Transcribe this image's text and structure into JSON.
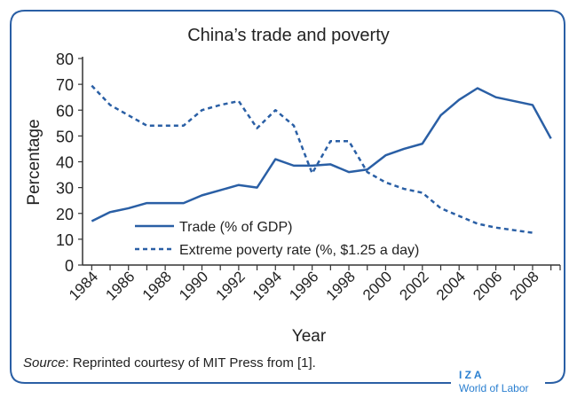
{
  "chart_data": {
    "type": "line",
    "title": "China’s trade and poverty",
    "xlabel": "Year",
    "ylabel": "Percentage",
    "xlim": [
      1983.5,
      2009.5
    ],
    "ylim": [
      0,
      80
    ],
    "yticks": [
      0,
      10,
      20,
      30,
      40,
      50,
      60,
      70,
      80
    ],
    "xtick_labels": [
      "1984",
      "1986",
      "1988",
      "1990",
      "1992",
      "1994",
      "1996",
      "1998",
      "2000",
      "2002",
      "2004",
      "2006",
      "2008"
    ],
    "grid": false,
    "legend_position": "bottom-center",
    "series": [
      {
        "name": "Trade (% of GDP)",
        "style": "solid",
        "x": [
          1984,
          1985,
          1986,
          1987,
          1988,
          1989,
          1990,
          1991,
          1992,
          1993,
          1994,
          1995,
          1996,
          1997,
          1998,
          1999,
          2000,
          2001,
          2002,
          2003,
          2004,
          2005,
          2006,
          2007,
          2008,
          2009
        ],
        "values": [
          17,
          20.5,
          22,
          24,
          24,
          24,
          27,
          29,
          31,
          30,
          41,
          38.5,
          38.5,
          39,
          36,
          37,
          42.5,
          45,
          47,
          58,
          64,
          68.5,
          65,
          63.5,
          62,
          49
        ]
      },
      {
        "name": "Extreme poverty rate (%, $1.25 a day)",
        "style": "dashed",
        "x": [
          1984,
          1985,
          1986,
          1987,
          1988,
          1989,
          1990,
          1991,
          1992,
          1993,
          1994,
          1995,
          1996,
          1997,
          1998,
          1999,
          2000,
          2001,
          2002,
          2003,
          2004,
          2005,
          2006,
          2007,
          2008
        ],
        "values": [
          69.5,
          62,
          58,
          54,
          54,
          54,
          60,
          62,
          63.5,
          53,
          60,
          54,
          35.5,
          48,
          48,
          36,
          32,
          29.5,
          28,
          22,
          19,
          16,
          14.5,
          13.5,
          12.5
        ]
      }
    ],
    "source_label": "Source",
    "source_text": ": Reprinted courtesy of MIT Press from [1].",
    "logo_top": "I Z A",
    "logo_bottom": "World of Labor",
    "color": "#2a5fa5"
  }
}
